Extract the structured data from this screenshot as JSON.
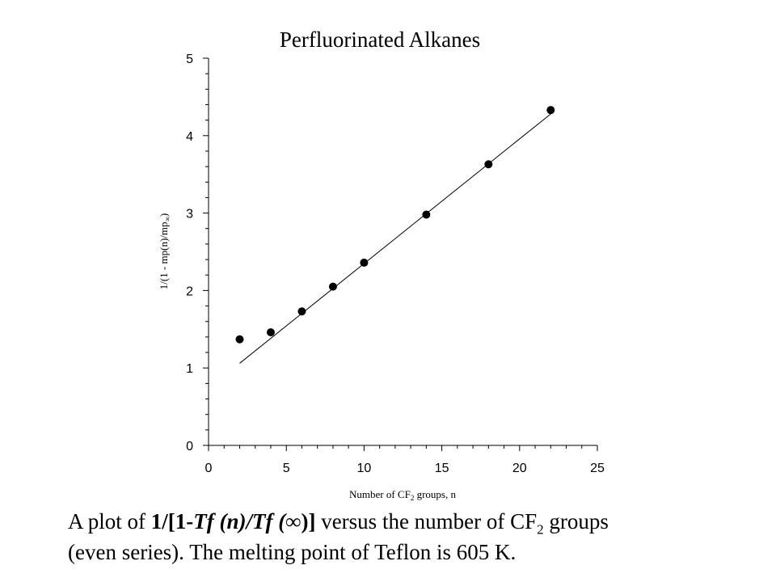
{
  "chart_data": {
    "type": "scatter",
    "title": "Perfluorinated Alkanes",
    "xlabel": {
      "prefix": "Number of CF",
      "subscript": "2",
      "suffix": " groups, n"
    },
    "ylabel": {
      "prefix": "1/(1 - mp(n)/mp",
      "subscript": "∞",
      "suffix": ")"
    },
    "xlim": [
      0,
      25
    ],
    "ylim": [
      0,
      5
    ],
    "xticks": [
      "0",
      "5",
      "10",
      "15",
      "20",
      "25"
    ],
    "yticks": [
      "0",
      "1",
      "2",
      "3",
      "4",
      "5"
    ],
    "grid": false,
    "series": [
      {
        "x": [
          2,
          4,
          6,
          8,
          10,
          14,
          18,
          22
        ],
        "y": [
          1.37,
          1.46,
          1.73,
          2.05,
          2.36,
          2.98,
          3.63,
          4.33
        ],
        "marker": "filled-circle",
        "color": "#000000"
      }
    ],
    "fit_line": {
      "x": [
        2,
        22
      ],
      "y": [
        1.06,
        4.28
      ]
    }
  },
  "caption": {
    "line1": {
      "lead": "A plot of ",
      "expr_part1": "1/[1-",
      "expr_part2": "Tf (n)/Tf (",
      "expr_part3": "∞",
      "expr_part4": ")]",
      "middle": " versus the number of CF",
      "subscript": "2",
      "tail": " groups"
    },
    "line2": "(even series).  The melting point of Teflon is 605 K."
  }
}
